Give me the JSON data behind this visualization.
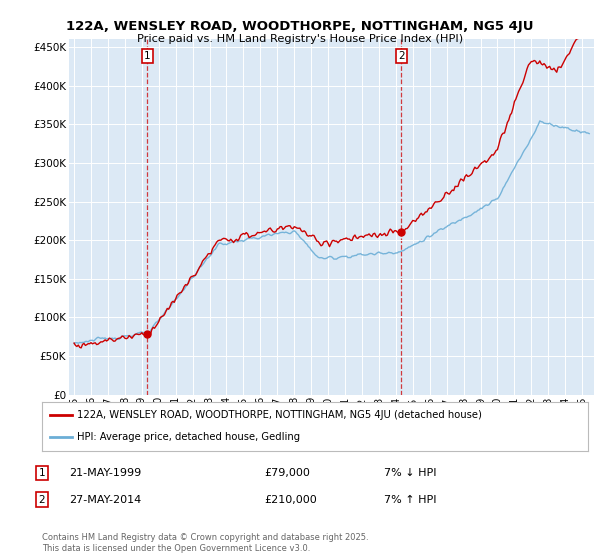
{
  "title": "122A, WENSLEY ROAD, WOODTHORPE, NOTTINGHAM, NG5 4JU",
  "subtitle": "Price paid vs. HM Land Registry's House Price Index (HPI)",
  "background_color": "#ffffff",
  "plot_bg_color": "#dce9f5",
  "grid_color": "#ffffff",
  "hpi_color": "#6baed6",
  "price_color": "#cc0000",
  "marker1_price": 79000,
  "marker2_price": 210000,
  "ylim": [
    0,
    460000
  ],
  "yticks": [
    0,
    50000,
    100000,
    150000,
    200000,
    250000,
    300000,
    350000,
    400000,
    450000
  ],
  "ytick_labels": [
    "£0",
    "£50K",
    "£100K",
    "£150K",
    "£200K",
    "£250K",
    "£300K",
    "£350K",
    "£400K",
    "£450K"
  ],
  "legend_label_red": "122A, WENSLEY ROAD, WOODTHORPE, NOTTINGHAM, NG5 4JU (detached house)",
  "legend_label_blue": "HPI: Average price, detached house, Gedling",
  "footer": "Contains HM Land Registry data © Crown copyright and database right 2025.\nThis data is licensed under the Open Government Licence v3.0.",
  "ann1_date": "21-MAY-1999",
  "ann1_price": "£79,000",
  "ann1_hpi": "7% ↓ HPI",
  "ann2_date": "27-MAY-2014",
  "ann2_price": "£210,000",
  "ann2_hpi": "7% ↑ HPI"
}
